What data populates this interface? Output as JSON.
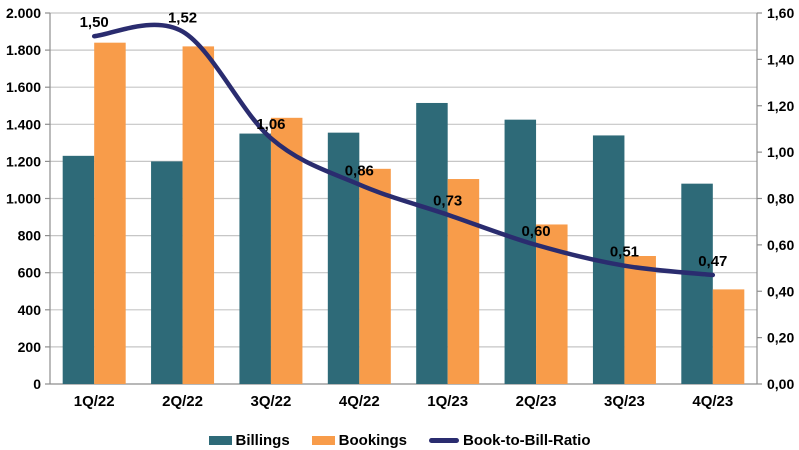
{
  "chart_data": {
    "type": "combo",
    "title": "",
    "categories": [
      "1Q/22",
      "2Q/22",
      "3Q/22",
      "4Q/22",
      "1Q/23",
      "2Q/23",
      "3Q/23",
      "4Q/23"
    ],
    "series": [
      {
        "name": "Billings",
        "type": "bar",
        "axis": "left",
        "color": "#2E6A78",
        "values": [
          1230,
          1200,
          1350,
          1355,
          1515,
          1425,
          1340,
          1080
        ]
      },
      {
        "name": "Bookings",
        "type": "bar",
        "axis": "left",
        "color": "#F89C4A",
        "values": [
          1840,
          1820,
          1435,
          1160,
          1105,
          860,
          690,
          510
        ]
      },
      {
        "name": "Book-to-Bill-Ratio",
        "type": "line",
        "axis": "right",
        "color": "#2A2C6F",
        "values": [
          1.5,
          1.52,
          1.06,
          0.86,
          0.73,
          0.6,
          0.51,
          0.47
        ],
        "point_labels": [
          "1,50",
          "1,52",
          "1,06",
          "0,86",
          "0,73",
          "0,60",
          "0,51",
          "0,47"
        ]
      }
    ],
    "left_axis": {
      "min": 0,
      "max": 2000,
      "step": 200,
      "tick_labels": [
        "0",
        "200",
        "400",
        "600",
        "800",
        "1.000",
        "1.200",
        "1.400",
        "1.600",
        "1.800",
        "2.000"
      ]
    },
    "right_axis": {
      "min": 0,
      "max": 1.6,
      "step": 0.2,
      "tick_labels": [
        "0,00",
        "0,20",
        "0,40",
        "0,60",
        "0,80",
        "1,00",
        "1,20",
        "1,40",
        "1,60"
      ]
    },
    "grid": true,
    "legend_position": "bottom",
    "colors": {
      "grid": "#C6C6C6",
      "axis": "#8E8E8E",
      "text": "#000000",
      "background": "#FFFFFF"
    }
  }
}
